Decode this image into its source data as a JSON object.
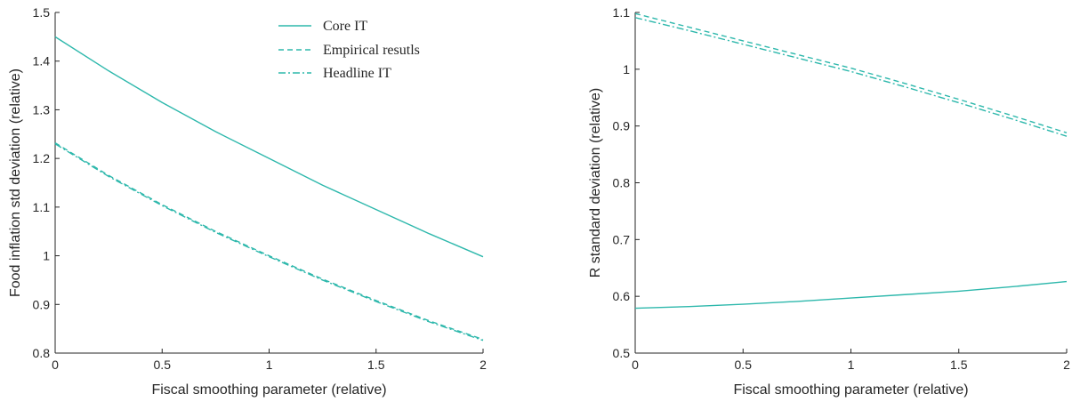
{
  "colors": {
    "series": "#2eb8ac",
    "axis": "#262626"
  },
  "chart_data": [
    {
      "type": "line",
      "xlabel": "Fiscal smoothing parameter (relative)",
      "ylabel": "Food inflation std deviation (relative)",
      "xlim": [
        0,
        2
      ],
      "ylim": [
        0.8,
        1.5
      ],
      "xticks": [
        0,
        0.5,
        1,
        1.5,
        2
      ],
      "xtick_labels": [
        "0",
        "0.5",
        "1",
        "1.5",
        "2"
      ],
      "yticks": [
        0.8,
        0.9,
        1.0,
        1.1,
        1.2,
        1.3,
        1.4,
        1.5
      ],
      "ytick_labels": [
        "0.8",
        "0.9",
        "1",
        "1.1",
        "1.2",
        "1.3",
        "1.4",
        "1.5"
      ],
      "legend_position": "top-right",
      "series": [
        {
          "name": "Core IT",
          "dash": "solid",
          "x": [
            0,
            0.25,
            0.5,
            0.75,
            1,
            1.25,
            1.5,
            1.75,
            2
          ],
          "y": [
            1.45,
            1.38,
            1.315,
            1.255,
            1.2,
            1.145,
            1.095,
            1.045,
            0.998
          ]
        },
        {
          "name": "Empirical resutls",
          "dash": "dashed",
          "x": [
            0,
            0.25,
            0.5,
            0.75,
            1,
            1.25,
            1.5,
            1.75,
            2
          ],
          "y": [
            1.232,
            1.165,
            1.105,
            1.05,
            1.0,
            0.952,
            0.908,
            0.866,
            0.828
          ]
        },
        {
          "name": "Headline IT",
          "dash": "dashdot",
          "x": [
            0,
            0.25,
            0.5,
            0.75,
            1,
            1.25,
            1.5,
            1.75,
            2
          ],
          "y": [
            1.23,
            1.163,
            1.103,
            1.048,
            0.998,
            0.95,
            0.906,
            0.864,
            0.826
          ]
        }
      ]
    },
    {
      "type": "line",
      "xlabel": "Fiscal smoothing parameter (relative)",
      "ylabel": "R standard deviation (relative)",
      "xlim": [
        0,
        2
      ],
      "ylim": [
        0.5,
        1.1
      ],
      "xticks": [
        0,
        0.5,
        1,
        1.5,
        2
      ],
      "xtick_labels": [
        "0",
        "0.5",
        "1",
        "1.5",
        "2"
      ],
      "yticks": [
        0.5,
        0.6,
        0.7,
        0.8,
        0.9,
        1.0,
        1.1
      ],
      "ytick_labels": [
        "0.5",
        "0.6",
        "0.7",
        "0.8",
        "0.9",
        "1",
        "1.1"
      ],
      "series": [
        {
          "name": "Core IT",
          "dash": "solid",
          "x": [
            0,
            0.25,
            0.5,
            0.75,
            1,
            1.25,
            1.5,
            1.75,
            2
          ],
          "y": [
            0.579,
            0.582,
            0.586,
            0.591,
            0.597,
            0.603,
            0.609,
            0.617,
            0.626
          ]
        },
        {
          "name": "Empirical resutls",
          "dash": "dashed",
          "x": [
            0,
            0.25,
            0.5,
            0.75,
            1,
            1.25,
            1.5,
            1.75,
            2
          ],
          "y": [
            1.098,
            1.074,
            1.05,
            1.026,
            1.002,
            0.975,
            0.947,
            0.918,
            0.888
          ]
        },
        {
          "name": "Headline IT",
          "dash": "dashdot",
          "x": [
            0,
            0.25,
            0.5,
            0.75,
            1,
            1.25,
            1.5,
            1.75,
            2
          ],
          "y": [
            1.091,
            1.068,
            1.044,
            1.02,
            0.996,
            0.969,
            0.941,
            0.912,
            0.882
          ]
        }
      ]
    }
  ]
}
